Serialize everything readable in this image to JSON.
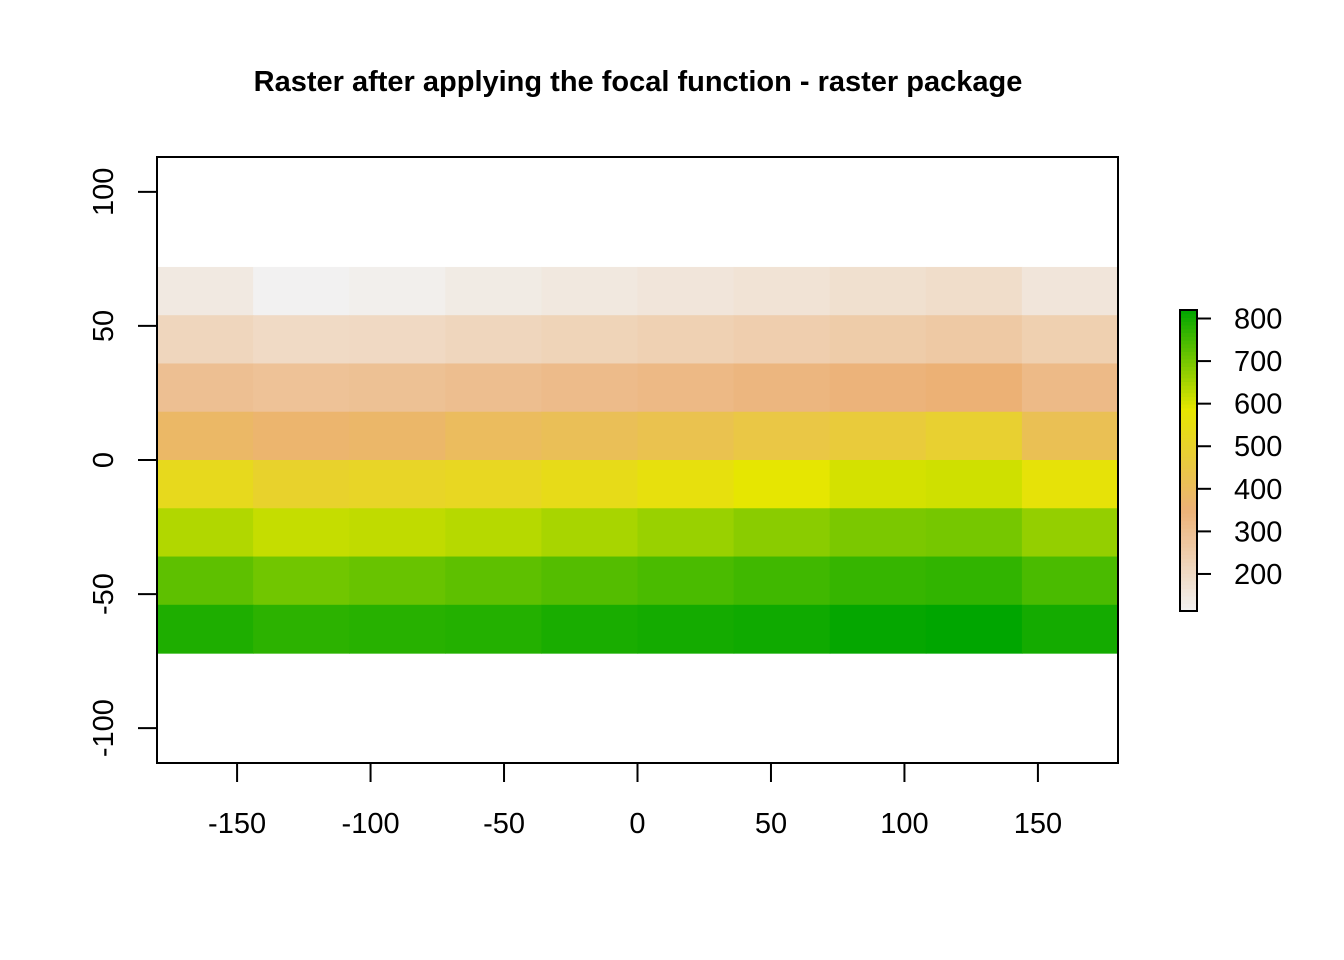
{
  "chart_data": {
    "type": "heatmap",
    "title": "Raster after applying the focal function - raster package",
    "xlabel": "",
    "ylabel": "",
    "xlim": [
      -180,
      180
    ],
    "ylim": [
      -113,
      113
    ],
    "x_ticks": [
      -150,
      -100,
      -50,
      0,
      50,
      100,
      150
    ],
    "y_ticks": [
      -100,
      -50,
      0,
      50,
      100
    ],
    "x_edges": [
      -180,
      -144,
      -108,
      -72,
      -36,
      0,
      36,
      72,
      108,
      144,
      180
    ],
    "y_edges": [
      72,
      54,
      36,
      18,
      0,
      -18,
      -36,
      -54,
      -72
    ],
    "values": [
      [
        145,
        115,
        125,
        140,
        150,
        160,
        170,
        180,
        190,
        160
      ],
      [
        215,
        200,
        205,
        215,
        225,
        235,
        245,
        255,
        265,
        240
      ],
      [
        300,
        290,
        295,
        305,
        315,
        325,
        335,
        345,
        355,
        320
      ],
      [
        385,
        370,
        380,
        400,
        415,
        430,
        450,
        470,
        490,
        420
      ],
      [
        530,
        500,
        510,
        520,
        540,
        560,
        585,
        605,
        610,
        570
      ],
      [
        640,
        620,
        625,
        635,
        650,
        665,
        680,
        695,
        700,
        670
      ],
      [
        725,
        705,
        715,
        725,
        735,
        745,
        755,
        765,
        770,
        745
      ],
      [
        790,
        775,
        780,
        785,
        795,
        800,
        805,
        815,
        820,
        800
      ]
    ],
    "legend": {
      "placement": "right",
      "range": [
        113,
        820
      ],
      "ticks": [
        200,
        300,
        400,
        500,
        600,
        700,
        800
      ]
    },
    "colormap": "terrain",
    "grid": false
  }
}
